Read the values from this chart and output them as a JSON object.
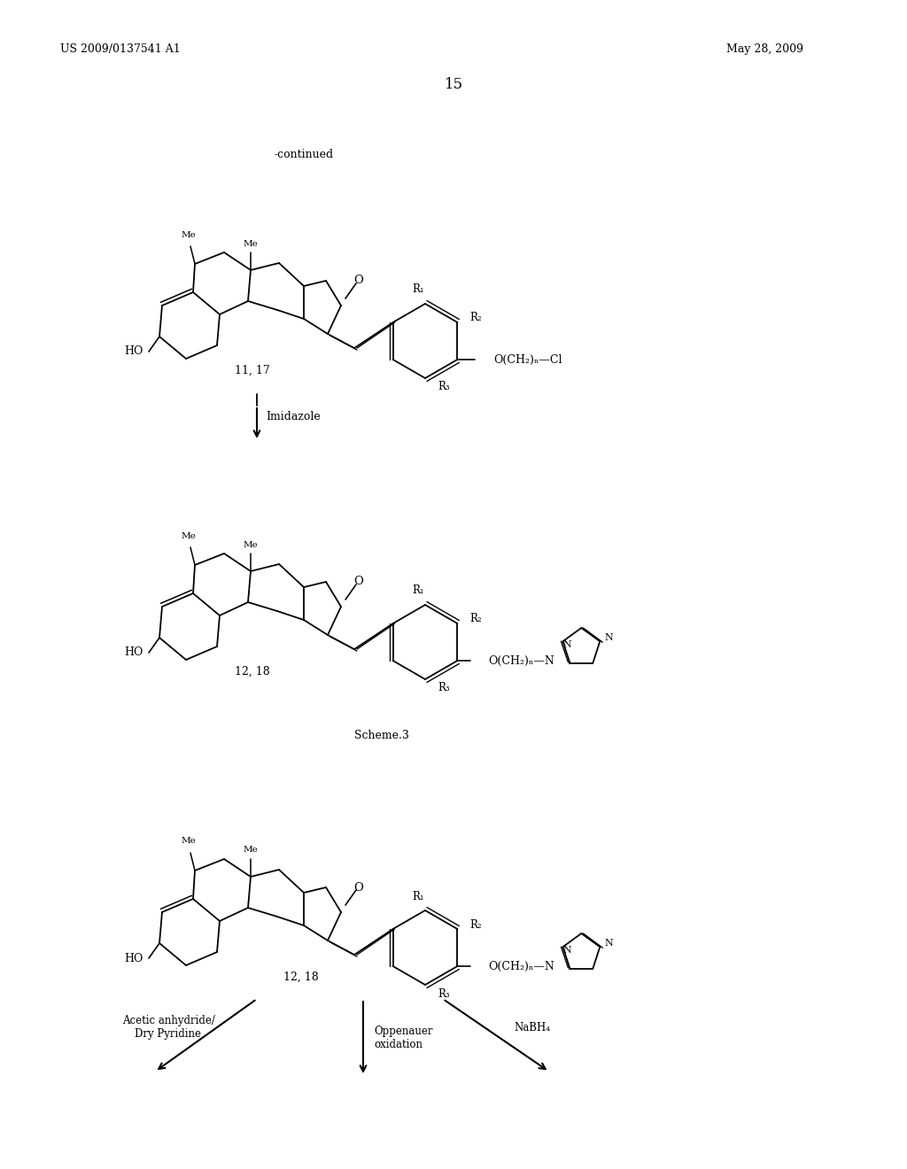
{
  "background_color": "#ffffff",
  "page_width": 10.24,
  "page_height": 13.2,
  "header_left": "US 2009/0137541 A1",
  "header_right": "May 28, 2009",
  "page_number": "15",
  "continued_label": "-continued",
  "compound1_label": "11, 17",
  "reaction1_label": "Imidazole",
  "compound2_label": "12, 18",
  "scheme3_label": "Scheme.3",
  "compound3_label": "12, 18",
  "arrow1_label": "Acetic anhydride/\nDry Pyridine",
  "arrow2_label": "Oppenauer\noxidation",
  "arrow3_label": "NaBH₄"
}
